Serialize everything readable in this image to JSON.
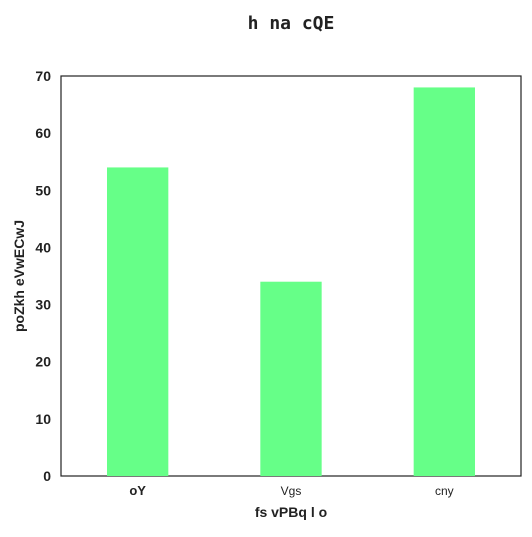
{
  "chart_data": {
    "type": "bar",
    "title": "h na  cQE",
    "xlabel": "fs  vPBq l o",
    "ylabel": "poZkh  eVwECwJ",
    "categories": [
      "oY",
      "Vgs",
      "cny"
    ],
    "category_bold": [
      true,
      false,
      false
    ],
    "values": [
      54,
      34,
      68
    ],
    "ylim": [
      0,
      70
    ],
    "yticks": [
      0,
      10,
      20,
      30,
      40,
      50,
      60,
      70
    ],
    "bar_color": "#66ff88",
    "grid": false,
    "legend": "none"
  }
}
